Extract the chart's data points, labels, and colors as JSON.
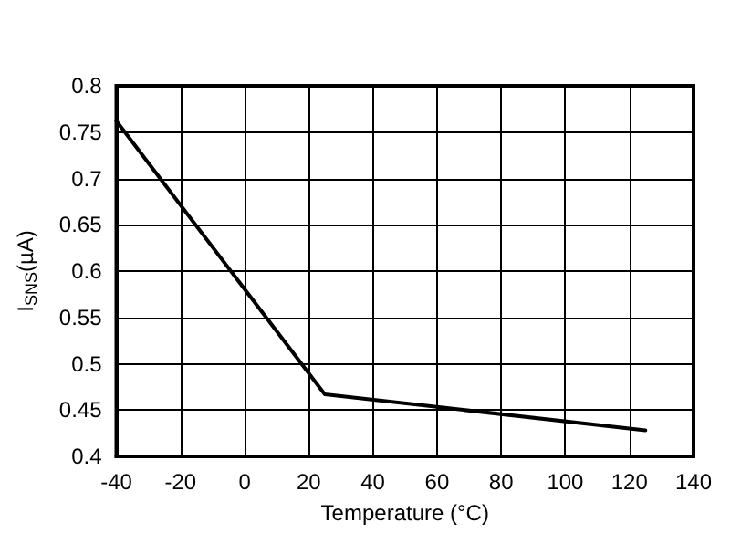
{
  "chart_data": {
    "type": "line",
    "xlabel": "Temperature (°C)",
    "ylabel": "I$_{SNS}$(µA)",
    "x": [
      -40,
      25,
      125
    ],
    "series": [
      {
        "color": "#000000",
        "values": [
          0.762,
          0.467,
          0.428
        ]
      }
    ],
    "xlim": [
      -40,
      140
    ],
    "xticks": [
      -40,
      -20,
      0,
      20,
      40,
      60,
      80,
      100,
      120,
      140
    ],
    "ylim": [
      0.4,
      0.8
    ],
    "yticks": [
      0.4,
      0.45,
      0.5,
      0.55,
      0.6,
      0.65,
      0.7,
      0.75,
      0.8
    ],
    "grid": true,
    "marker": "none",
    "line_style": "solid"
  }
}
